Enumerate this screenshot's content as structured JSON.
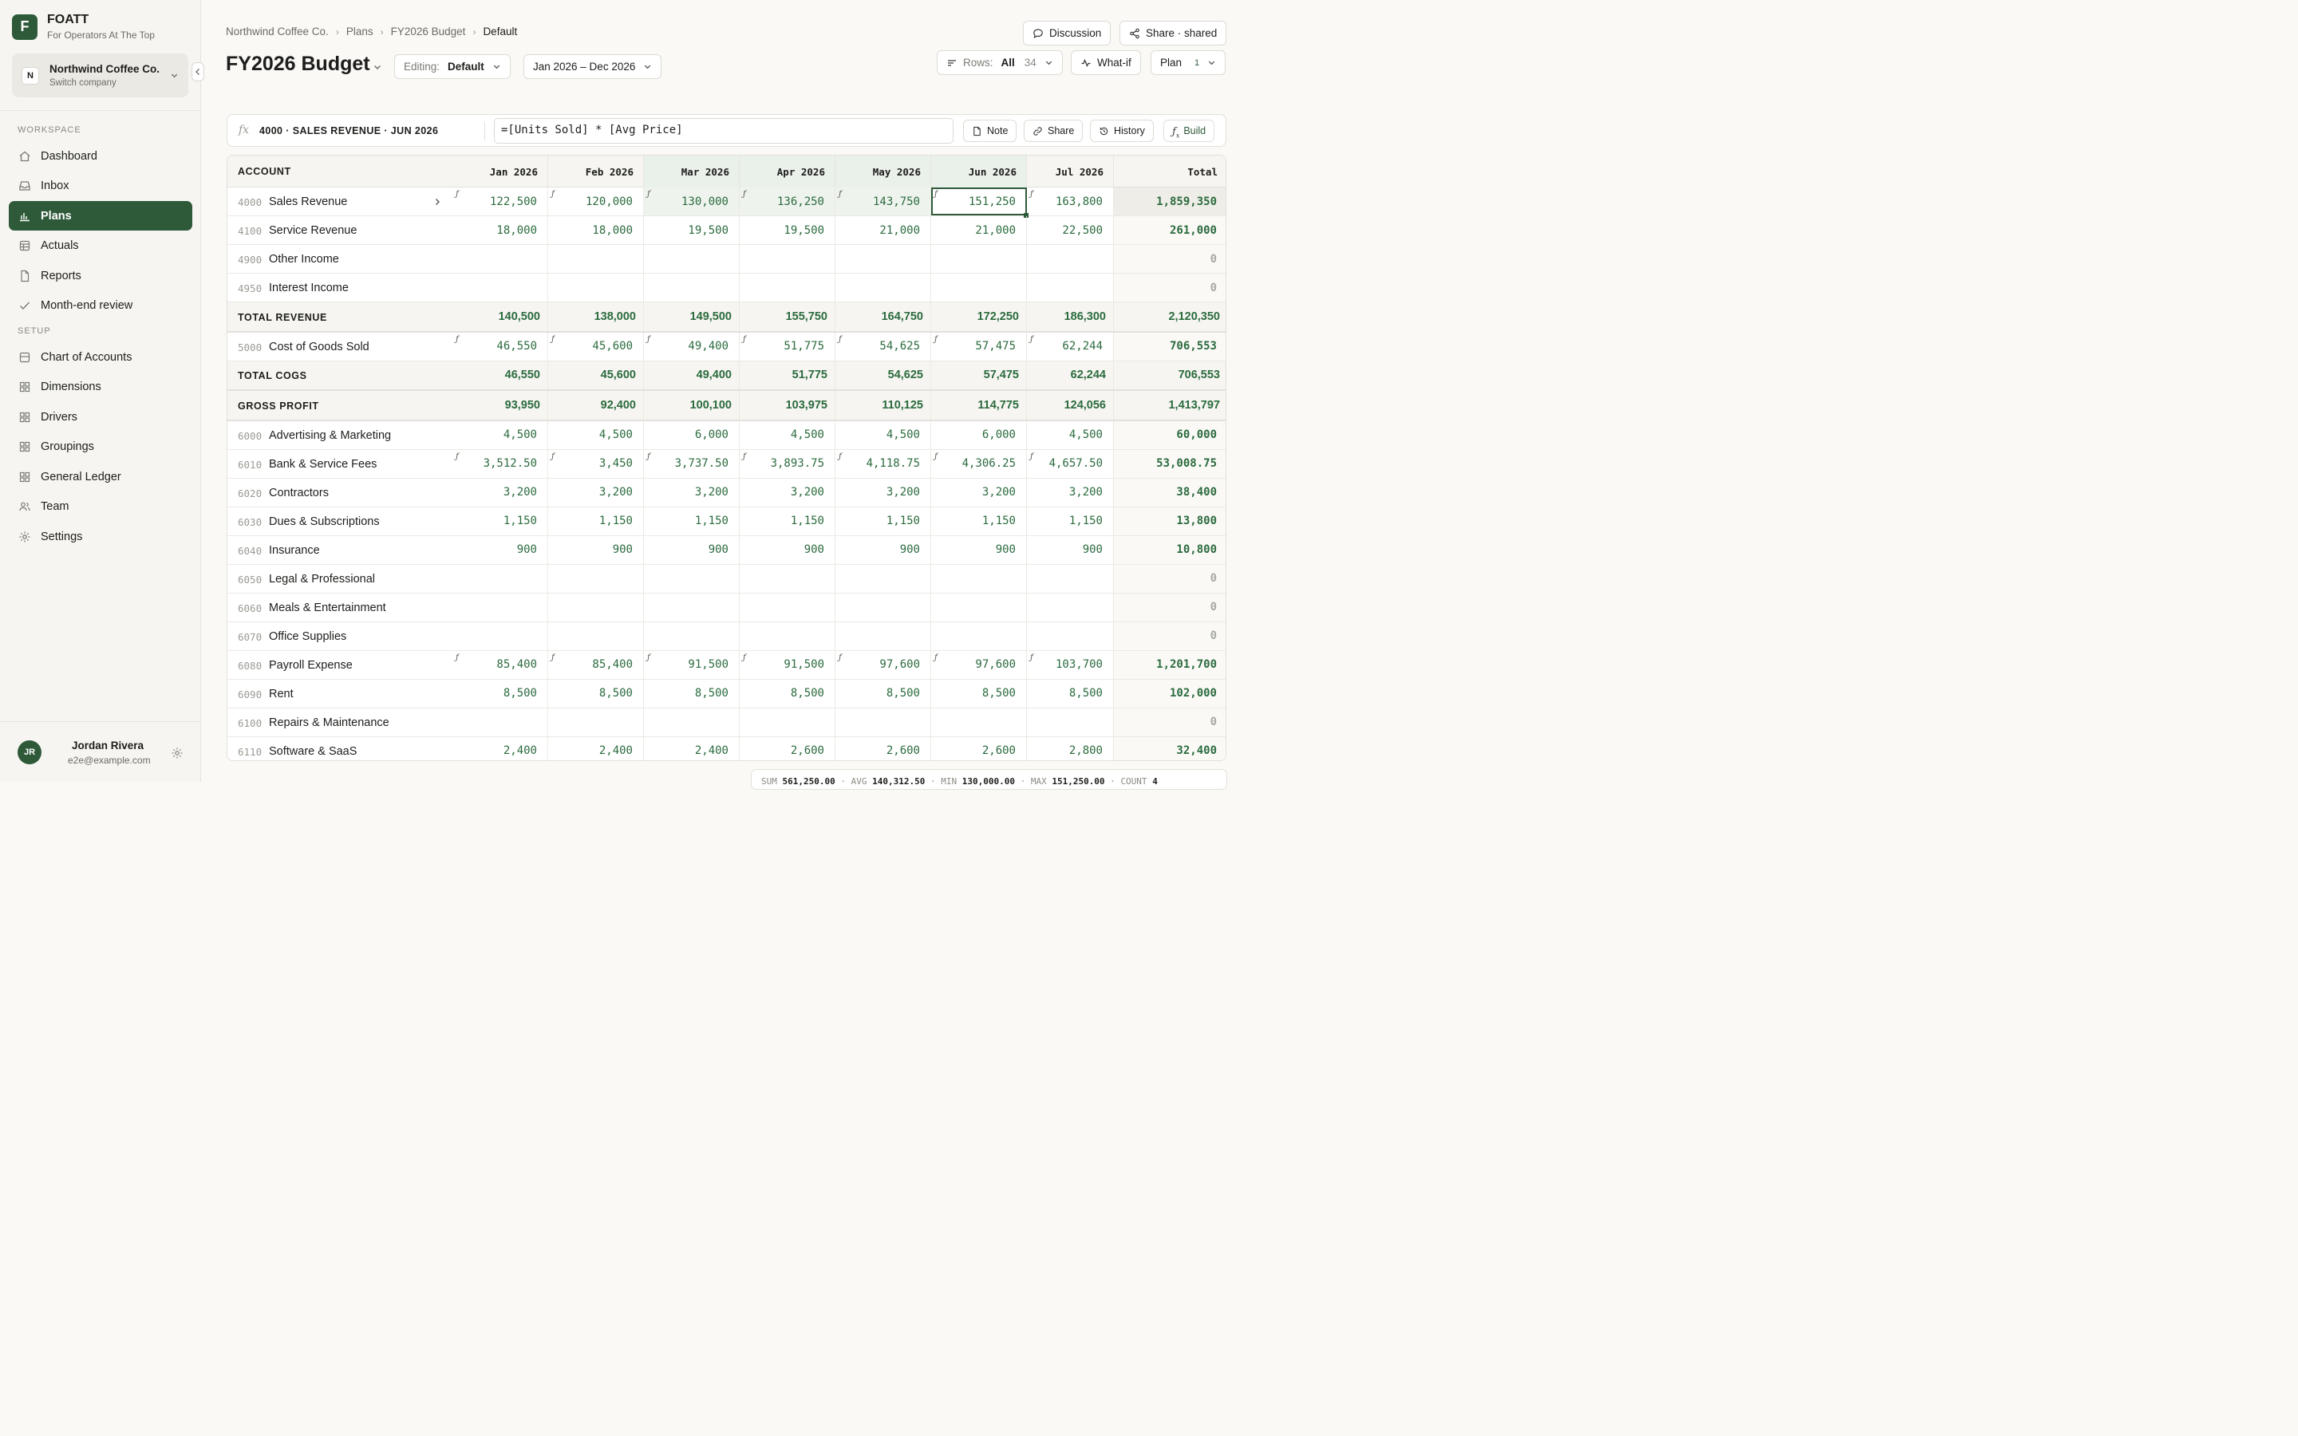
{
  "brand": {
    "name": "FOATT",
    "tagline": "For Operators At The Top",
    "logo_letter": "F"
  },
  "company": {
    "initial": "N",
    "name": "Northwind Coffee Co.",
    "sub": "Switch company"
  },
  "sidebar": {
    "workspace_label": "WORKSPACE",
    "workspace_items": [
      {
        "label": "Dashboard",
        "icon": "home-icon"
      },
      {
        "label": "Inbox",
        "icon": "inbox-icon"
      },
      {
        "label": "Plans",
        "icon": "bar-chart-icon",
        "active": true
      },
      {
        "label": "Actuals",
        "icon": "table-icon"
      },
      {
        "label": "Reports",
        "icon": "document-icon"
      },
      {
        "label": "Month-end review",
        "icon": "check-icon"
      }
    ],
    "setup_label": "SETUP",
    "setup_items": [
      {
        "label": "Chart of Accounts",
        "icon": "list-icon"
      },
      {
        "label": "Dimensions",
        "icon": "grid-icon"
      },
      {
        "label": "Drivers",
        "icon": "grid-icon"
      },
      {
        "label": "Groupings",
        "icon": "grid-icon"
      },
      {
        "label": "General Ledger",
        "icon": "grid-icon"
      },
      {
        "label": "Team",
        "icon": "users-icon"
      },
      {
        "label": "Settings",
        "icon": "gear-icon"
      }
    ]
  },
  "user": {
    "initials": "JR",
    "name": "Jordan Rivera",
    "email": "e2e@example.com"
  },
  "breadcrumb": [
    "Northwind Coffee Co.",
    "Plans",
    "FY2026 Budget",
    "Default"
  ],
  "page_title": "FY2026 Budget",
  "editing": {
    "label": "Editing:",
    "value": "Default"
  },
  "date_range": "Jan 2026 – Dec 2026",
  "header_buttons": {
    "discussion": "Discussion",
    "share": "Share · shared"
  },
  "rows_filter": {
    "label": "Rows:",
    "value": "All",
    "count": "34"
  },
  "whatif": "What-if",
  "plan_button": {
    "label": "Plan",
    "badge": "1"
  },
  "formula_bar": {
    "fx": "fx",
    "reference": "4000 · SALES REVENUE · JUN 2026",
    "formula": "=[Units Sold] * [Avg Price]",
    "buttons": [
      "Note",
      "Share",
      "History",
      "Build"
    ]
  },
  "table": {
    "account_header": "ACCOUNT",
    "columns": [
      "Jan 2026",
      "Feb 2026",
      "Mar 2026",
      "Apr 2026",
      "May 2026",
      "Jun 2026",
      "Jul 2026",
      "Total"
    ],
    "rows": [
      {
        "type": "account",
        "code": "4000",
        "name": "Sales Revenue",
        "expandable": true,
        "formula": true,
        "values": [
          "122,500",
          "120,000",
          "130,000",
          "136,250",
          "143,750",
          "151,250",
          "163,800"
        ],
        "total": "1,859,350"
      },
      {
        "type": "account",
        "code": "4100",
        "name": "Service Revenue",
        "formula": false,
        "values": [
          "18,000",
          "18,000",
          "19,500",
          "19,500",
          "21,000",
          "21,000",
          "22,500"
        ],
        "total": "261,000"
      },
      {
        "type": "account",
        "code": "4900",
        "name": "Other Income",
        "formula": false,
        "values": [
          "",
          "",
          "",
          "",
          "",
          "",
          ""
        ],
        "total": "0"
      },
      {
        "type": "account",
        "code": "4950",
        "name": "Interest Income",
        "formula": false,
        "values": [
          "",
          "",
          "",
          "",
          "",
          "",
          ""
        ],
        "total": "0"
      },
      {
        "type": "total",
        "name": "TOTAL REVENUE",
        "values": [
          "140,500",
          "138,000",
          "149,500",
          "155,750",
          "164,750",
          "172,250",
          "186,300"
        ],
        "total": "2,120,350"
      },
      {
        "type": "account",
        "code": "5000",
        "name": "Cost of Goods Sold",
        "formula": true,
        "values": [
          "46,550",
          "45,600",
          "49,400",
          "51,775",
          "54,625",
          "57,475",
          "62,244"
        ],
        "total": "706,553"
      },
      {
        "type": "total",
        "name": "TOTAL COGS",
        "values": [
          "46,550",
          "45,600",
          "49,400",
          "51,775",
          "54,625",
          "57,475",
          "62,244"
        ],
        "total": "706,553"
      },
      {
        "type": "total",
        "name": "GROSS PROFIT",
        "values": [
          "93,950",
          "92,400",
          "100,100",
          "103,975",
          "110,125",
          "114,775",
          "124,056"
        ],
        "total": "1,413,797"
      },
      {
        "type": "account",
        "code": "6000",
        "name": "Advertising & Marketing",
        "formula": false,
        "values": [
          "4,500",
          "4,500",
          "6,000",
          "4,500",
          "4,500",
          "6,000",
          "4,500"
        ],
        "total": "60,000"
      },
      {
        "type": "account",
        "code": "6010",
        "name": "Bank & Service Fees",
        "formula": true,
        "values": [
          "3,512.50",
          "3,450",
          "3,737.50",
          "3,893.75",
          "4,118.75",
          "4,306.25",
          "4,657.50"
        ],
        "total": "53,008.75"
      },
      {
        "type": "account",
        "code": "6020",
        "name": "Contractors",
        "formula": false,
        "values": [
          "3,200",
          "3,200",
          "3,200",
          "3,200",
          "3,200",
          "3,200",
          "3,200"
        ],
        "total": "38,400"
      },
      {
        "type": "account",
        "code": "6030",
        "name": "Dues & Subscriptions",
        "formula": false,
        "values": [
          "1,150",
          "1,150",
          "1,150",
          "1,150",
          "1,150",
          "1,150",
          "1,150"
        ],
        "total": "13,800"
      },
      {
        "type": "account",
        "code": "6040",
        "name": "Insurance",
        "formula": false,
        "values": [
          "900",
          "900",
          "900",
          "900",
          "900",
          "900",
          "900"
        ],
        "total": "10,800"
      },
      {
        "type": "account",
        "code": "6050",
        "name": "Legal & Professional",
        "formula": false,
        "values": [
          "",
          "",
          "",
          "",
          "",
          "",
          ""
        ],
        "total": "0"
      },
      {
        "type": "account",
        "code": "6060",
        "name": "Meals & Entertainment",
        "formula": false,
        "values": [
          "",
          "",
          "",
          "",
          "",
          "",
          ""
        ],
        "total": "0"
      },
      {
        "type": "account",
        "code": "6070",
        "name": "Office Supplies",
        "formula": false,
        "values": [
          "",
          "",
          "",
          "",
          "",
          "",
          ""
        ],
        "total": "0"
      },
      {
        "type": "account",
        "code": "6080",
        "name": "Payroll Expense",
        "formula": true,
        "values": [
          "85,400",
          "85,400",
          "91,500",
          "91,500",
          "97,600",
          "97,600",
          "103,700"
        ],
        "total": "1,201,700"
      },
      {
        "type": "account",
        "code": "6090",
        "name": "Rent",
        "formula": false,
        "values": [
          "8,500",
          "8,500",
          "8,500",
          "8,500",
          "8,500",
          "8,500",
          "8,500"
        ],
        "total": "102,000"
      },
      {
        "type": "account",
        "code": "6100",
        "name": "Repairs & Maintenance",
        "formula": false,
        "values": [
          "",
          "",
          "",
          "",
          "",
          "",
          ""
        ],
        "total": "0"
      },
      {
        "type": "account",
        "code": "6110",
        "name": "Software & SaaS",
        "formula": false,
        "values": [
          "2,400",
          "2,400",
          "2,400",
          "2,600",
          "2,600",
          "2,600",
          "2,800"
        ],
        "total": "32,400"
      }
    ]
  },
  "status_bar": {
    "sum_label": "SUM",
    "sum": "561,250.00",
    "avg_label": "AVG",
    "avg": "140,312.50",
    "min_label": "MIN",
    "min": "130,000.00",
    "max_label": "MAX",
    "max": "151,250.00",
    "count_label": "COUNT",
    "count": "4"
  },
  "colors": {
    "accent": "#2e5a3a",
    "value_green": "#2b6b3e",
    "background": "#faf9f6"
  }
}
